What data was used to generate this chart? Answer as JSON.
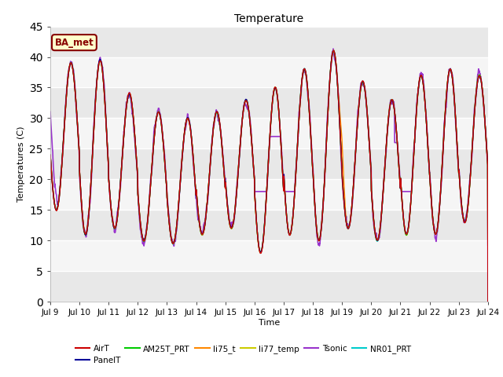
{
  "title": "Temperature",
  "xlabel": "Time",
  "ylabel": "Temperatures (C)",
  "ylim": [
    0,
    45
  ],
  "yticks": [
    0,
    5,
    10,
    15,
    20,
    25,
    30,
    35,
    40,
    45
  ],
  "xstart_day": 9,
  "xend_day": 24,
  "n_days": 15,
  "month": "Jul",
  "series_names": [
    "AirT",
    "PanelT",
    "AM25T_PRT",
    "li75_t",
    "li77_temp",
    "Tsonic",
    "NR01_PRT"
  ],
  "series_colors": {
    "AirT": "#cc0000",
    "PanelT": "#000099",
    "AM25T_PRT": "#00cc00",
    "li75_t": "#ff8800",
    "li77_temp": "#cccc00",
    "Tsonic": "#9933cc",
    "NR01_PRT": "#00cccc"
  },
  "series_lw": {
    "AirT": 1.0,
    "PanelT": 1.0,
    "AM25T_PRT": 1.0,
    "li75_t": 1.0,
    "li77_temp": 1.0,
    "Tsonic": 1.2,
    "NR01_PRT": 1.0
  },
  "annotation_label": "BA_met",
  "annotation_color": "#880000",
  "annotation_bg": "#ffffcc",
  "annotation_border": "#880000",
  "bg_light": "#f0f0f0",
  "bg_dark": "#dcdcdc",
  "grid_color": "#ffffff",
  "peaks": [
    39,
    39.5,
    34,
    31,
    30,
    31,
    33,
    35,
    38,
    41,
    36,
    33,
    37,
    38,
    37
  ],
  "troughs": [
    15,
    11,
    12,
    10,
    9.5,
    11,
    12,
    8,
    11,
    10,
    12,
    10,
    11,
    11,
    13
  ],
  "figsize": [
    6.4,
    4.8
  ],
  "dpi": 100
}
